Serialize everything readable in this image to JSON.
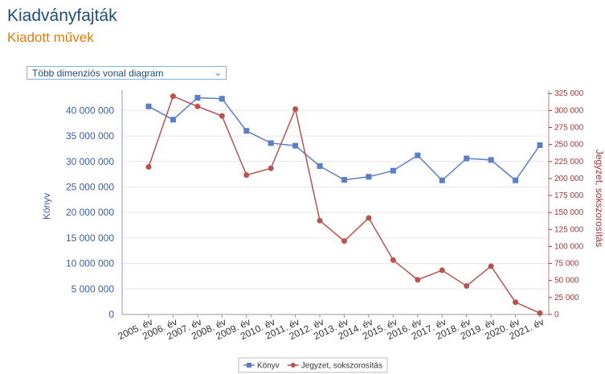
{
  "header": {
    "title": "Kiadványfajták",
    "subtitle": "Kiadott művek"
  },
  "chart_type_select": {
    "selected": "Több dimenziós vonal diagram",
    "icon": "chevron-down-icon"
  },
  "colors": {
    "series_left": "#5b7fc7",
    "series_right": "#b85450",
    "title": "#1f4e79",
    "subtitle": "#e07d10"
  },
  "chart_data": {
    "type": "line",
    "categories": [
      "2005. év",
      "2006. év",
      "2007. év",
      "2008. év",
      "2009. év",
      "2010. év",
      "2011. év",
      "2012. év",
      "2013. év",
      "2014. év",
      "2015. év",
      "2016. év",
      "2017. év",
      "2018. év",
      "2019. év",
      "2020. év",
      "2021. év"
    ],
    "ylabel": "Könyv",
    "y2label": "Jegyzet, sokszorosítás",
    "ylim": [
      0,
      44000000
    ],
    "y2lim": [
      0,
      330000
    ],
    "yticks": [
      "0",
      "5 000 000",
      "10 000 000",
      "15 000 000",
      "20 000 000",
      "25 000 000",
      "30 000 000",
      "35 000 000",
      "40 000 000"
    ],
    "y2ticks": [
      "0",
      "25 000",
      "50 000",
      "75 000",
      "100 000",
      "125 000",
      "150 000",
      "175 000",
      "200 000",
      "225 000",
      "250 000",
      "275 000",
      "300 000",
      "325 000"
    ],
    "series": [
      {
        "name": "Könyv",
        "axis": "left",
        "marker": "square",
        "values": [
          40800000,
          38200000,
          42500000,
          42300000,
          36000000,
          33600000,
          33100000,
          29100000,
          26400000,
          27000000,
          28200000,
          31200000,
          26300000,
          30600000,
          30300000,
          26300000,
          33200000
        ]
      },
      {
        "name": "Jegyzet, sokszorosítás",
        "axis": "right",
        "marker": "circle",
        "values": [
          217000,
          321000,
          306000,
          292000,
          205000,
          215000,
          302000,
          138000,
          108000,
          142000,
          80000,
          51000,
          65000,
          42000,
          71000,
          18000,
          2000
        ]
      }
    ],
    "grid": true,
    "legend": "bottom"
  }
}
